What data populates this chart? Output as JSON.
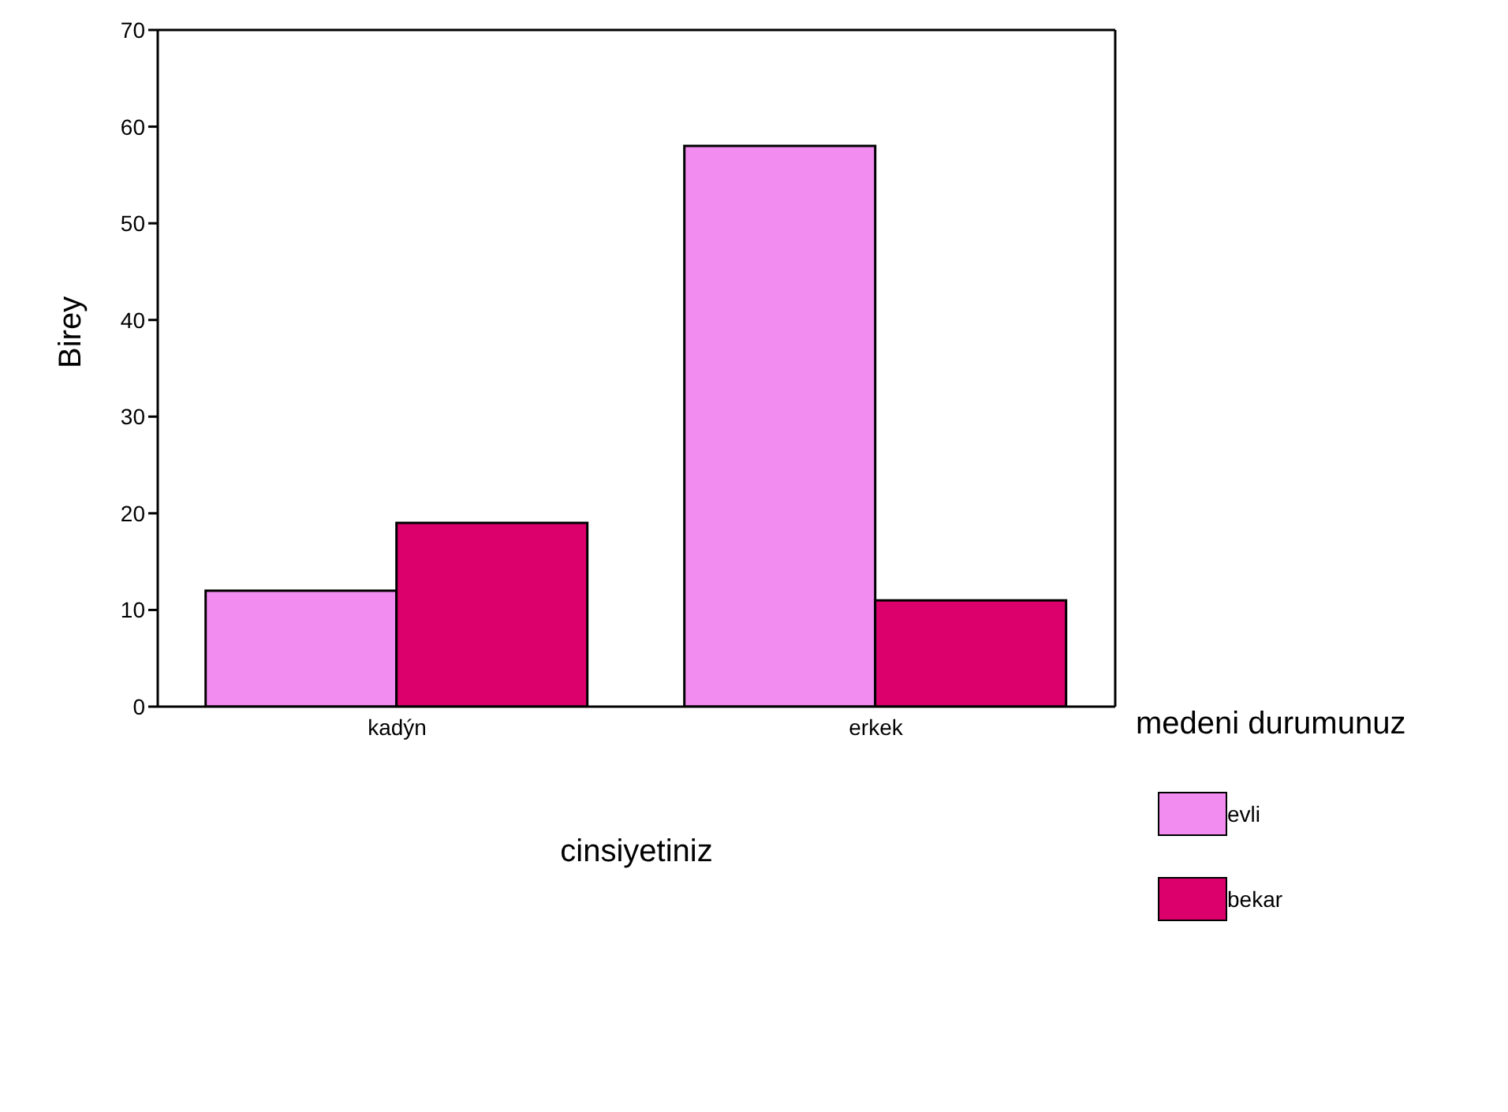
{
  "chart_data": {
    "type": "bar",
    "categories": [
      "kadýn",
      "erkek"
    ],
    "series": [
      {
        "name": "evli",
        "color": "#f28cf0",
        "values": [
          12,
          58
        ]
      },
      {
        "name": "bekar",
        "color": "#dc006c",
        "values": [
          19,
          11
        ]
      }
    ],
    "xlabel": "cinsiyetiniz",
    "ylabel": "Birey",
    "legend_title": "medeni durumunuz",
    "ylim": [
      0,
      70
    ],
    "yticks": [
      0,
      10,
      20,
      30,
      40,
      50,
      60,
      70
    ],
    "grid": false,
    "legend": "right"
  }
}
